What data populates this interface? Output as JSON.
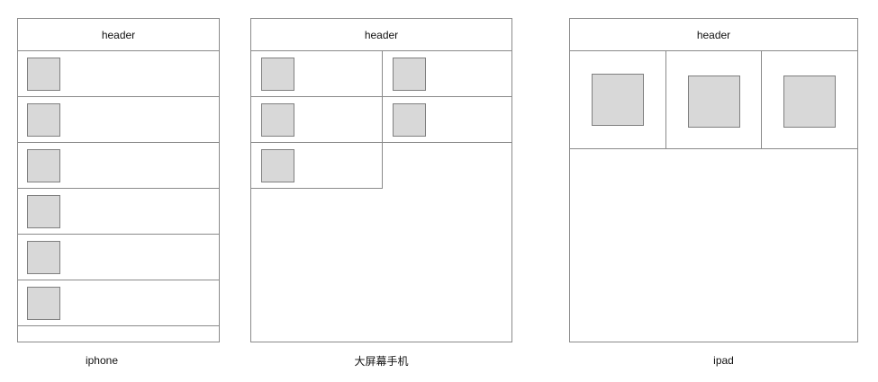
{
  "devices": [
    {
      "header": "header",
      "caption": "iphone"
    },
    {
      "header": "header",
      "caption": "大屏幕手机"
    },
    {
      "header": "header",
      "caption": "ipad"
    }
  ]
}
